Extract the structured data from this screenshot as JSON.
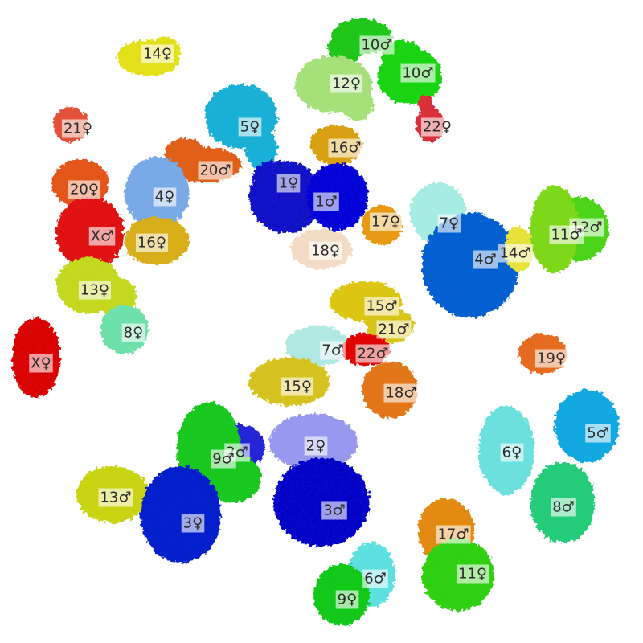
{
  "territories": [
    {
      "label": "14♀",
      "color": "#e3e01c"
    },
    {
      "label": "10♂",
      "color": "#22c71e"
    },
    {
      "label": "10♂",
      "color": "#1fd415"
    },
    {
      "label": "12♀",
      "color": "#a6e07a"
    },
    {
      "label": "21♀",
      "color": "#e2523a"
    },
    {
      "label": "5♀",
      "color": "#1fb0d6"
    },
    {
      "label": "22♀",
      "color": "#d8303a"
    },
    {
      "label": "16♂",
      "color": "#d9a012"
    },
    {
      "label": "20♂",
      "color": "#e0601e"
    },
    {
      "label": "20♀",
      "color": "#e4561c"
    },
    {
      "label": "4♀",
      "color": "#7aaae6"
    },
    {
      "label": "1♀",
      "color": "#1414c8"
    },
    {
      "label": "1♂",
      "color": "#0c0cd8"
    },
    {
      "label": "17♀",
      "color": "#e79a18"
    },
    {
      "label": "7♀",
      "color": "#a6ece2"
    },
    {
      "label": "12♂",
      "color": "#4ed41a"
    },
    {
      "label": "11♂",
      "color": "#7ed81a"
    },
    {
      "label": "X♂",
      "color": "#e01414"
    },
    {
      "label": "16♀",
      "color": "#d8ae1e"
    },
    {
      "label": "18♀",
      "color": "#f2dcc6"
    },
    {
      "label": "4♂",
      "color": "#1060d0"
    },
    {
      "label": "14♂",
      "color": "#e6e23a"
    },
    {
      "label": "13♀",
      "color": "#c4d820"
    },
    {
      "label": "15♂",
      "color": "#dcc614"
    },
    {
      "label": "8♀",
      "color": "#6ee0ac"
    },
    {
      "label": "21♂",
      "color": "#d8c41e"
    },
    {
      "label": "X♀",
      "color": "#da1010"
    },
    {
      "label": "7♂",
      "color": "#b0e8e2"
    },
    {
      "label": "22♂",
      "color": "#e01010"
    },
    {
      "label": "19♀",
      "color": "#e66c22"
    },
    {
      "label": "15♀",
      "color": "#d6c220"
    },
    {
      "label": "18♂",
      "color": "#e2761a"
    },
    {
      "label": "5♂",
      "color": "#18a8e0"
    },
    {
      "label": "2♂",
      "color": "#2828d8"
    },
    {
      "label": "9♂",
      "color": "#1ec820"
    },
    {
      "label": "2♀",
      "color": "#9898ee"
    },
    {
      "label": "6♀",
      "color": "#6ce0dc"
    },
    {
      "label": "13♂",
      "color": "#c8d416"
    },
    {
      "label": "3♂",
      "color": "#1010c8"
    },
    {
      "label": "8♂",
      "color": "#26cc7a"
    },
    {
      "label": "3♀",
      "color": "#1024cc"
    },
    {
      "label": "17♂",
      "color": "#e28a16"
    },
    {
      "label": "6♂",
      "color": "#5ee0e0"
    },
    {
      "label": "11♀",
      "color": "#32d016"
    },
    {
      "label": "9♀",
      "color": "#16c81c"
    }
  ]
}
